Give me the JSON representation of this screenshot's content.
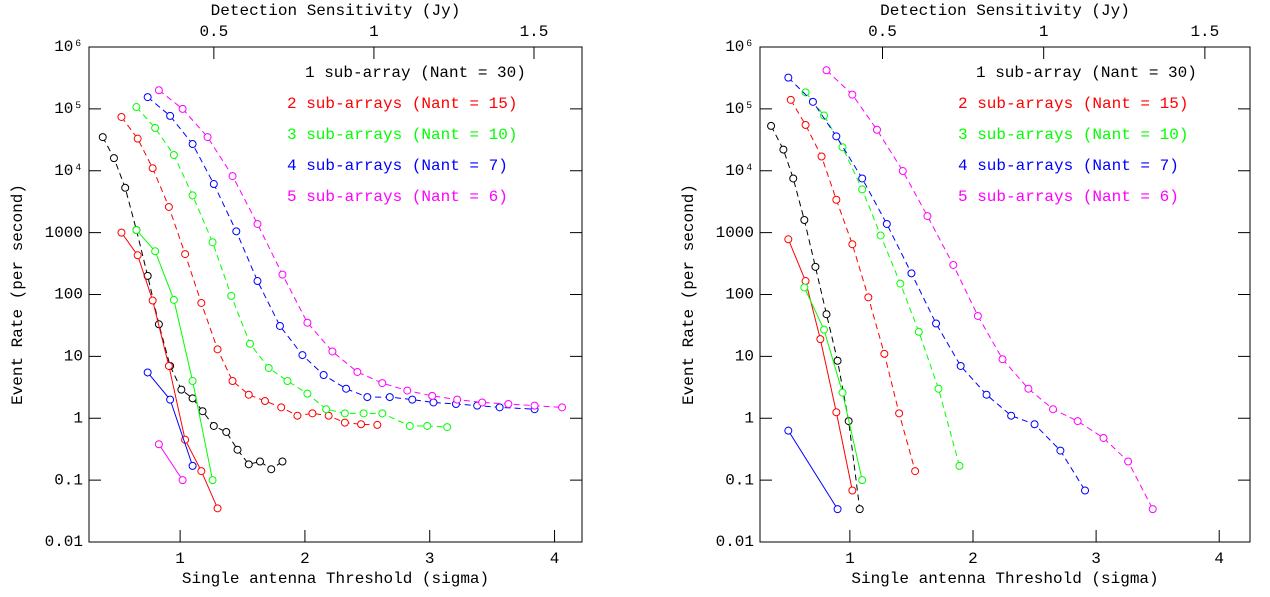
{
  "chart_data": [
    {
      "type": "line",
      "log_y": true,
      "line_style": "dashed",
      "marker": "open-circle",
      "xlabel": "Single antenna Threshold (sigma)",
      "ylabel": "Event Rate (per second)",
      "x2label": "Detection Sensitivity (Jy)",
      "xlim": [
        0.27,
        4.22
      ],
      "xticks": [
        1,
        2,
        3,
        4
      ],
      "x2lim": [
        0.11,
        1.65
      ],
      "x2ticks": [
        0.5,
        1,
        1.5
      ],
      "ylim": [
        0.01,
        1000000
      ],
      "yticks": [
        {
          "value": 1000000,
          "label": "10⁶"
        },
        {
          "value": 100000,
          "label": "10⁵"
        },
        {
          "value": 10000,
          "label": "10⁴"
        },
        1000,
        100,
        10,
        1,
        0.1,
        0.01
      ],
      "series": [
        {
          "name": "1 sub-array (Nant = 30)",
          "color": "#000000",
          "x": [
            0.38,
            0.47,
            0.56,
            0.65,
            0.74,
            0.83,
            0.92,
            1.01,
            1.1,
            1.18,
            1.27,
            1.37,
            1.46,
            1.55,
            1.64,
            1.73,
            1.82
          ],
          "values": [
            35000,
            16000,
            5300,
            1100,
            200,
            33,
            7,
            2.9,
            2.1,
            1.3,
            0.75,
            0.6,
            0.31,
            0.18,
            0.2,
            0.15,
            0.2
          ]
        },
        {
          "name": "2 sub-arrays (Nant = 15)",
          "color": "#ff0000",
          "x": [
            0.53,
            0.66,
            0.78,
            0.91,
            1.04,
            1.17,
            1.3,
            1.42,
            1.55,
            1.68,
            1.81,
            1.94,
            2.06,
            2.19,
            2.32,
            2.45,
            2.58
          ],
          "values": [
            74000,
            33000,
            11000,
            2600,
            450,
            73,
            13,
            4,
            2.4,
            1.9,
            1.5,
            1.1,
            1.2,
            1.1,
            0.85,
            0.8,
            0.78
          ],
          "solid_x": [
            0.53,
            0.66,
            0.78,
            0.91,
            1.04,
            1.17,
            1.3
          ],
          "solid_values": [
            1000,
            430,
            80,
            7,
            0.45,
            0.14,
            0.035
          ]
        },
        {
          "name": "3 sub-arrays (Nant = 10)",
          "color": "#00ff00",
          "x": [
            0.65,
            0.8,
            0.95,
            1.1,
            1.26,
            1.41,
            1.56,
            1.71,
            1.86,
            2.02,
            2.17,
            2.32,
            2.47,
            2.62,
            2.84,
            2.98,
            3.14
          ],
          "values": [
            107000,
            49000,
            18000,
            4000,
            700,
            95,
            16,
            6.5,
            4,
            2.5,
            1.4,
            1.2,
            1.2,
            1.2,
            0.75,
            0.75,
            0.72
          ],
          "solid_x": [
            0.65,
            0.8,
            0.95,
            1.1,
            1.26
          ],
          "solid_values": [
            1100,
            500,
            82,
            4,
            0.1
          ]
        },
        {
          "name": "4 sub-arrays (Nant = 7)",
          "color": "#0000ff",
          "x": [
            0.74,
            0.92,
            1.1,
            1.27,
            1.45,
            1.62,
            1.8,
            1.98,
            2.15,
            2.33,
            2.5,
            2.68,
            2.86,
            3.03,
            3.21,
            3.38,
            3.56,
            3.84
          ],
          "values": [
            155000,
            77000,
            27000,
            6100,
            1050,
            165,
            31,
            10.5,
            5,
            3,
            2.2,
            2.2,
            2,
            1.8,
            1.7,
            1.6,
            1.5,
            1.4
          ],
          "solid_x": [
            0.74,
            0.92,
            1.1
          ],
          "solid_values": [
            5.5,
            2,
            0.17
          ]
        },
        {
          "name": "5 sub-arrays (Nant = 6)",
          "color": "#ff00ff",
          "x": [
            0.83,
            1.02,
            1.22,
            1.42,
            1.62,
            1.82,
            2.02,
            2.22,
            2.42,
            2.62,
            2.82,
            3.02,
            3.22,
            3.42,
            3.63,
            3.84,
            4.06
          ],
          "values": [
            200000,
            100000,
            35000,
            8200,
            1380,
            210,
            35,
            12,
            5.6,
            3.7,
            2.8,
            2.3,
            2,
            1.8,
            1.7,
            1.6,
            1.5
          ],
          "solid_x": [
            0.83,
            1.02
          ],
          "solid_values": [
            0.38,
            0.1
          ]
        }
      ]
    },
    {
      "type": "line",
      "log_y": true,
      "line_style": "dashed",
      "marker": "open-circle",
      "xlabel": "Single antenna Threshold (sigma)",
      "ylabel": "Event Rate (per second)",
      "x2label": "Detection Sensitivity (Jy)",
      "xlim": [
        0.27,
        4.25
      ],
      "xticks": [
        1,
        2,
        3,
        4
      ],
      "x2lim": [
        0.12,
        1.64
      ],
      "x2ticks": [
        0.5,
        1,
        1.5
      ],
      "ylim": [
        0.01,
        1000000
      ],
      "yticks": [
        {
          "value": 1000000,
          "label": "10⁶"
        },
        {
          "value": 100000,
          "label": "10⁵"
        },
        {
          "value": 10000,
          "label": "10⁴"
        },
        1000,
        100,
        10,
        1,
        0.1,
        0.01
      ],
      "series": [
        {
          "name": "1 sub-array (Nant = 30)",
          "color": "#000000",
          "x": [
            0.36,
            0.46,
            0.54,
            0.63,
            0.72,
            0.81,
            0.9,
            0.99,
            1.08
          ],
          "values": [
            53000,
            22000,
            7500,
            1600,
            280,
            48,
            8.5,
            0.9,
            0.034
          ]
        },
        {
          "name": "2 sub-arrays (Nant = 15)",
          "color": "#ff0000",
          "x": [
            0.52,
            0.64,
            0.77,
            0.89,
            1.02,
            1.15,
            1.28,
            1.4,
            1.53
          ],
          "values": [
            140000,
            55000,
            17000,
            3400,
            650,
            90,
            11,
            1.2,
            0.14
          ],
          "solid_x": [
            0.5,
            0.64,
            0.76,
            0.89,
            1.02
          ],
          "solid_values": [
            780,
            165,
            19,
            1.25,
            0.068
          ]
        },
        {
          "name": "3 sub-arrays (Nant = 10)",
          "color": "#00ff00",
          "x": [
            0.64,
            0.79,
            0.94,
            1.1,
            1.25,
            1.41,
            1.56,
            1.72,
            1.89
          ],
          "values": [
            185000,
            78000,
            24000,
            5000,
            900,
            150,
            25,
            3,
            0.17
          ],
          "solid_x": [
            0.63,
            0.79,
            0.94,
            1.1
          ],
          "solid_values": [
            130,
            27,
            2.6,
            0.1
          ]
        },
        {
          "name": "4 sub-arrays (Nant = 7)",
          "color": "#0000ff",
          "x": [
            0.5,
            0.7,
            0.89,
            1.1,
            1.3,
            1.5,
            1.7,
            1.9,
            2.11,
            2.31,
            2.5,
            2.71,
            2.91
          ],
          "values": [
            320000,
            130000,
            36000,
            7500,
            1380,
            220,
            34,
            7,
            2.4,
            1.1,
            0.8,
            0.3,
            0.068
          ],
          "solid_x": [
            0.5,
            0.9
          ],
          "solid_values": [
            0.63,
            0.034
          ]
        },
        {
          "name": "5 sub-arrays (Nant = 6)",
          "color": "#ff00ff",
          "x": [
            0.81,
            1.02,
            1.22,
            1.43,
            1.63,
            1.84,
            2.04,
            2.24,
            2.45,
            2.65,
            2.85,
            3.06,
            3.26,
            3.46
          ],
          "values": [
            420000,
            170000,
            46000,
            9900,
            1850,
            300,
            45,
            9,
            3,
            1.4,
            0.9,
            0.48,
            0.2,
            0.034
          ]
        }
      ]
    }
  ]
}
